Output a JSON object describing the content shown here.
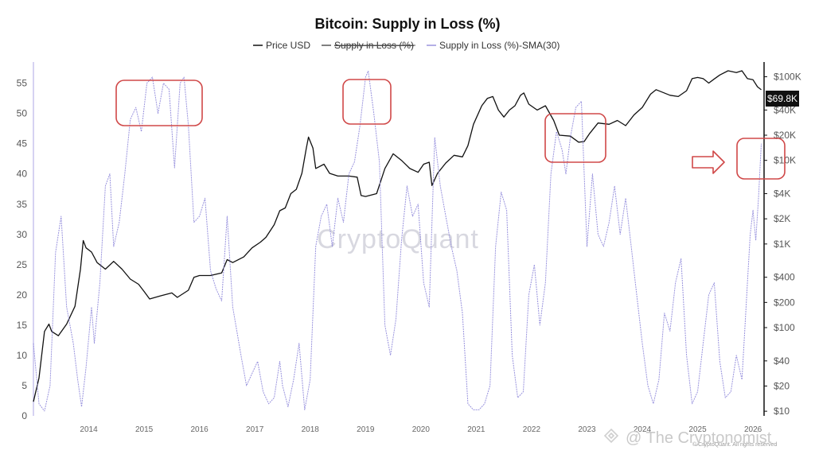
{
  "chart_data": {
    "type": "line",
    "title": "Bitcoin: Supply in Loss (%)",
    "legend": [
      {
        "name": "Price USD",
        "color": "#111111",
        "struck": false
      },
      {
        "name": "Supply in Loss (%)",
        "color": "#555555",
        "struck": true
      },
      {
        "name": "Supply in Loss (%)-SMA(30)",
        "color": "#9a94de",
        "struck": false
      }
    ],
    "x_ticks": [
      "2014",
      "2015",
      "2016",
      "2017",
      "2018",
      "2019",
      "2020",
      "2021",
      "2022",
      "2023",
      "2024",
      "2025",
      "2026"
    ],
    "x_range": [
      2013.0,
      2026.2
    ],
    "left_axis": {
      "ticks": [
        0,
        5,
        10,
        15,
        20,
        25,
        30,
        35,
        40,
        45,
        50,
        55
      ],
      "ylim": [
        0,
        58.5
      ]
    },
    "right_axis": {
      "scale": "log",
      "ticks": [
        {
          "v": 10,
          "label": "$10"
        },
        {
          "v": 20,
          "label": "$20"
        },
        {
          "v": 40,
          "label": "$40"
        },
        {
          "v": 100,
          "label": "$100"
        },
        {
          "v": 200,
          "label": "$200"
        },
        {
          "v": 400,
          "label": "$400"
        },
        {
          "v": 1000,
          "label": "$1K"
        },
        {
          "v": 2000,
          "label": "$2K"
        },
        {
          "v": 4000,
          "label": "$4K"
        },
        {
          "v": 10000,
          "label": "$10K"
        },
        {
          "v": 20000,
          "label": "$20K"
        },
        {
          "v": 40000,
          "label": "$40K"
        },
        {
          "v": 100000,
          "label": "$100K"
        }
      ],
      "ylim": [
        8.8,
        150000
      ]
    },
    "current_price_label": "$69.8K",
    "series": [
      {
        "name": "Price USD",
        "axis": "right",
        "color": "#111111",
        "points": [
          [
            2013.0,
            13
          ],
          [
            2013.1,
            25
          ],
          [
            2013.2,
            90
          ],
          [
            2013.28,
            110
          ],
          [
            2013.33,
            90
          ],
          [
            2013.45,
            80
          ],
          [
            2013.6,
            110
          ],
          [
            2013.75,
            180
          ],
          [
            2013.85,
            500
          ],
          [
            2013.9,
            1100
          ],
          [
            2013.95,
            900
          ],
          [
            2014.05,
            800
          ],
          [
            2014.15,
            600
          ],
          [
            2014.3,
            500
          ],
          [
            2014.45,
            620
          ],
          [
            2014.6,
            500
          ],
          [
            2014.75,
            380
          ],
          [
            2014.9,
            330
          ],
          [
            2015.0,
            270
          ],
          [
            2015.1,
            220
          ],
          [
            2015.3,
            240
          ],
          [
            2015.5,
            260
          ],
          [
            2015.6,
            230
          ],
          [
            2015.8,
            280
          ],
          [
            2015.9,
            400
          ],
          [
            2016.0,
            420
          ],
          [
            2016.2,
            420
          ],
          [
            2016.4,
            450
          ],
          [
            2016.5,
            650
          ],
          [
            2016.6,
            600
          ],
          [
            2016.8,
            700
          ],
          [
            2016.95,
            900
          ],
          [
            2017.1,
            1050
          ],
          [
            2017.2,
            1200
          ],
          [
            2017.35,
            1700
          ],
          [
            2017.45,
            2500
          ],
          [
            2017.55,
            2700
          ],
          [
            2017.65,
            4000
          ],
          [
            2017.75,
            4500
          ],
          [
            2017.85,
            7000
          ],
          [
            2017.93,
            14000
          ],
          [
            2017.97,
            19000
          ],
          [
            2018.05,
            14000
          ],
          [
            2018.1,
            8000
          ],
          [
            2018.25,
            9000
          ],
          [
            2018.35,
            7000
          ],
          [
            2018.5,
            6500
          ],
          [
            2018.7,
            6500
          ],
          [
            2018.85,
            6300
          ],
          [
            2018.92,
            3800
          ],
          [
            2019.0,
            3700
          ],
          [
            2019.2,
            4000
          ],
          [
            2019.35,
            8000
          ],
          [
            2019.5,
            12000
          ],
          [
            2019.65,
            10000
          ],
          [
            2019.8,
            8000
          ],
          [
            2019.95,
            7200
          ],
          [
            2020.05,
            9000
          ],
          [
            2020.15,
            9500
          ],
          [
            2020.2,
            5000
          ],
          [
            2020.3,
            7000
          ],
          [
            2020.45,
            9300
          ],
          [
            2020.6,
            11500
          ],
          [
            2020.75,
            11000
          ],
          [
            2020.85,
            15000
          ],
          [
            2020.95,
            27000
          ],
          [
            2021.1,
            45000
          ],
          [
            2021.2,
            55000
          ],
          [
            2021.3,
            58000
          ],
          [
            2021.4,
            40000
          ],
          [
            2021.5,
            33000
          ],
          [
            2021.6,
            40000
          ],
          [
            2021.7,
            45000
          ],
          [
            2021.8,
            60000
          ],
          [
            2021.86,
            64000
          ],
          [
            2021.95,
            47000
          ],
          [
            2022.1,
            40000
          ],
          [
            2022.25,
            45000
          ],
          [
            2022.4,
            30000
          ],
          [
            2022.5,
            20000
          ],
          [
            2022.7,
            19500
          ],
          [
            2022.85,
            16500
          ],
          [
            2022.95,
            16800
          ],
          [
            2023.05,
            21000
          ],
          [
            2023.2,
            28000
          ],
          [
            2023.4,
            27000
          ],
          [
            2023.55,
            30000
          ],
          [
            2023.7,
            26000
          ],
          [
            2023.85,
            35000
          ],
          [
            2024.0,
            43000
          ],
          [
            2024.15,
            62000
          ],
          [
            2024.25,
            70000
          ],
          [
            2024.5,
            60000
          ],
          [
            2024.65,
            58000
          ],
          [
            2024.8,
            68000
          ],
          [
            2024.9,
            95000
          ],
          [
            2025.0,
            98000
          ],
          [
            2025.1,
            95000
          ],
          [
            2025.2,
            84000
          ],
          [
            2025.3,
            94000
          ],
          [
            2025.4,
            105000
          ],
          [
            2025.55,
            118000
          ],
          [
            2025.7,
            112000
          ],
          [
            2025.8,
            118000
          ],
          [
            2025.9,
            95000
          ],
          [
            2026.0,
            92000
          ],
          [
            2026.08,
            76000
          ],
          [
            2026.15,
            69800
          ]
        ]
      },
      {
        "name": "Supply in Loss (%)-SMA(30)",
        "axis": "left",
        "color": "#9a94de",
        "points": [
          [
            2013.0,
            12
          ],
          [
            2013.05,
            7
          ],
          [
            2013.1,
            2
          ],
          [
            2013.2,
            0.8
          ],
          [
            2013.3,
            5
          ],
          [
            2013.4,
            27
          ],
          [
            2013.5,
            33
          ],
          [
            2013.6,
            18
          ],
          [
            2013.72,
            12
          ],
          [
            2013.8,
            6
          ],
          [
            2013.87,
            1.5
          ],
          [
            2013.95,
            8
          ],
          [
            2014.05,
            18
          ],
          [
            2014.1,
            12
          ],
          [
            2014.2,
            22
          ],
          [
            2014.3,
            38
          ],
          [
            2014.38,
            40
          ],
          [
            2014.45,
            28
          ],
          [
            2014.55,
            32
          ],
          [
            2014.65,
            40
          ],
          [
            2014.75,
            49
          ],
          [
            2014.85,
            51
          ],
          [
            2014.95,
            47
          ],
          [
            2015.05,
            55
          ],
          [
            2015.15,
            56
          ],
          [
            2015.25,
            50
          ],
          [
            2015.35,
            55
          ],
          [
            2015.45,
            54
          ],
          [
            2015.55,
            41
          ],
          [
            2015.65,
            55
          ],
          [
            2015.72,
            56
          ],
          [
            2015.8,
            48
          ],
          [
            2015.9,
            32
          ],
          [
            2016.0,
            33
          ],
          [
            2016.1,
            36
          ],
          [
            2016.2,
            24
          ],
          [
            2016.3,
            21
          ],
          [
            2016.4,
            19
          ],
          [
            2016.5,
            33
          ],
          [
            2016.6,
            18
          ],
          [
            2016.75,
            10
          ],
          [
            2016.85,
            5
          ],
          [
            2017.0,
            8
          ],
          [
            2017.05,
            9
          ],
          [
            2017.15,
            4
          ],
          [
            2017.25,
            2
          ],
          [
            2017.35,
            3
          ],
          [
            2017.45,
            9
          ],
          [
            2017.5,
            5
          ],
          [
            2017.6,
            1.5
          ],
          [
            2017.7,
            6
          ],
          [
            2017.8,
            12
          ],
          [
            2017.9,
            1
          ],
          [
            2018.0,
            6
          ],
          [
            2018.1,
            28
          ],
          [
            2018.2,
            33
          ],
          [
            2018.3,
            35
          ],
          [
            2018.4,
            28
          ],
          [
            2018.5,
            36
          ],
          [
            2018.6,
            32
          ],
          [
            2018.7,
            40
          ],
          [
            2018.8,
            42
          ],
          [
            2018.9,
            48
          ],
          [
            2019.0,
            56
          ],
          [
            2019.05,
            57
          ],
          [
            2019.15,
            50
          ],
          [
            2019.25,
            42
          ],
          [
            2019.35,
            15
          ],
          [
            2019.45,
            10
          ],
          [
            2019.55,
            16
          ],
          [
            2019.65,
            29
          ],
          [
            2019.75,
            38
          ],
          [
            2019.85,
            33
          ],
          [
            2019.95,
            35
          ],
          [
            2020.05,
            22
          ],
          [
            2020.15,
            18
          ],
          [
            2020.25,
            46
          ],
          [
            2020.35,
            38
          ],
          [
            2020.45,
            33
          ],
          [
            2020.55,
            28
          ],
          [
            2020.65,
            24
          ],
          [
            2020.75,
            17
          ],
          [
            2020.85,
            2
          ],
          [
            2020.95,
            1
          ],
          [
            2021.05,
            1
          ],
          [
            2021.15,
            2
          ],
          [
            2021.25,
            5
          ],
          [
            2021.35,
            28
          ],
          [
            2021.45,
            37
          ],
          [
            2021.55,
            34
          ],
          [
            2021.65,
            10
          ],
          [
            2021.75,
            3
          ],
          [
            2021.85,
            4
          ],
          [
            2021.95,
            20
          ],
          [
            2022.05,
            25
          ],
          [
            2022.15,
            15
          ],
          [
            2022.25,
            22
          ],
          [
            2022.35,
            40
          ],
          [
            2022.45,
            47
          ],
          [
            2022.55,
            44
          ],
          [
            2022.62,
            40
          ],
          [
            2022.7,
            46
          ],
          [
            2022.8,
            51
          ],
          [
            2022.9,
            52
          ],
          [
            2023.0,
            28
          ],
          [
            2023.1,
            40
          ],
          [
            2023.2,
            30
          ],
          [
            2023.3,
            28
          ],
          [
            2023.4,
            32
          ],
          [
            2023.5,
            38
          ],
          [
            2023.6,
            30
          ],
          [
            2023.7,
            36
          ],
          [
            2023.8,
            28
          ],
          [
            2023.9,
            20
          ],
          [
            2024.0,
            12
          ],
          [
            2024.1,
            5
          ],
          [
            2024.2,
            2
          ],
          [
            2024.3,
            6
          ],
          [
            2024.4,
            17
          ],
          [
            2024.5,
            14
          ],
          [
            2024.6,
            22
          ],
          [
            2024.7,
            26
          ],
          [
            2024.8,
            10
          ],
          [
            2024.9,
            2
          ],
          [
            2025.0,
            4
          ],
          [
            2025.1,
            12
          ],
          [
            2025.2,
            20
          ],
          [
            2025.3,
            22
          ],
          [
            2025.4,
            9
          ],
          [
            2025.5,
            3
          ],
          [
            2025.6,
            4
          ],
          [
            2025.7,
            10
          ],
          [
            2025.8,
            6
          ],
          [
            2025.85,
            14
          ],
          [
            2025.9,
            22
          ],
          [
            2025.95,
            30
          ],
          [
            2026.0,
            34
          ],
          [
            2026.05,
            29
          ],
          [
            2026.1,
            36
          ],
          [
            2026.15,
            45
          ]
        ]
      }
    ]
  },
  "watermark": "CryptoQuant",
  "footer_credit": "@ The Cryptonomist",
  "copyright": "© CryptoQuant. All rights reserved"
}
